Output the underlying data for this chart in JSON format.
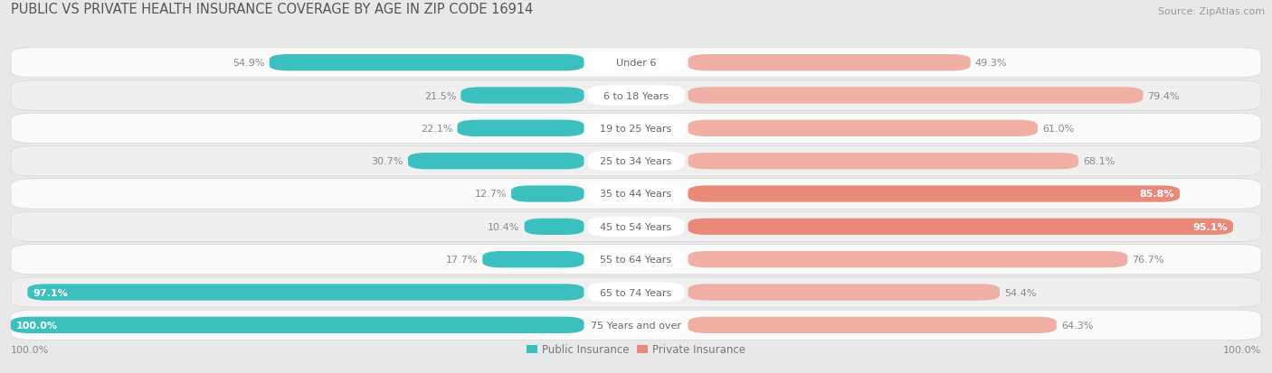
{
  "title": "PUBLIC VS PRIVATE HEALTH INSURANCE COVERAGE BY AGE IN ZIP CODE 16914",
  "source": "Source: ZipAtlas.com",
  "categories": [
    "Under 6",
    "6 to 18 Years",
    "19 to 25 Years",
    "25 to 34 Years",
    "35 to 44 Years",
    "45 to 54 Years",
    "55 to 64 Years",
    "65 to 74 Years",
    "75 Years and over"
  ],
  "public_values": [
    54.9,
    21.5,
    22.1,
    30.7,
    12.7,
    10.4,
    17.7,
    97.1,
    100.0
  ],
  "private_values": [
    49.3,
    79.4,
    61.0,
    68.1,
    85.8,
    95.1,
    76.7,
    54.4,
    64.3
  ],
  "public_color": "#3BBFBF",
  "private_color": "#E8897A",
  "private_color_light": "#F0AFA5",
  "bg_color": "#E8E8E8",
  "row_bg_light": "#FAFAFA",
  "row_bg_dark": "#EFEFEF",
  "row_border": "#D5D5D5",
  "bar_max": 100.0,
  "title_fontsize": 10.5,
  "source_fontsize": 8,
  "label_fontsize": 8,
  "value_fontsize": 8,
  "legend_fontsize": 8.5,
  "axis_label_fontsize": 8
}
